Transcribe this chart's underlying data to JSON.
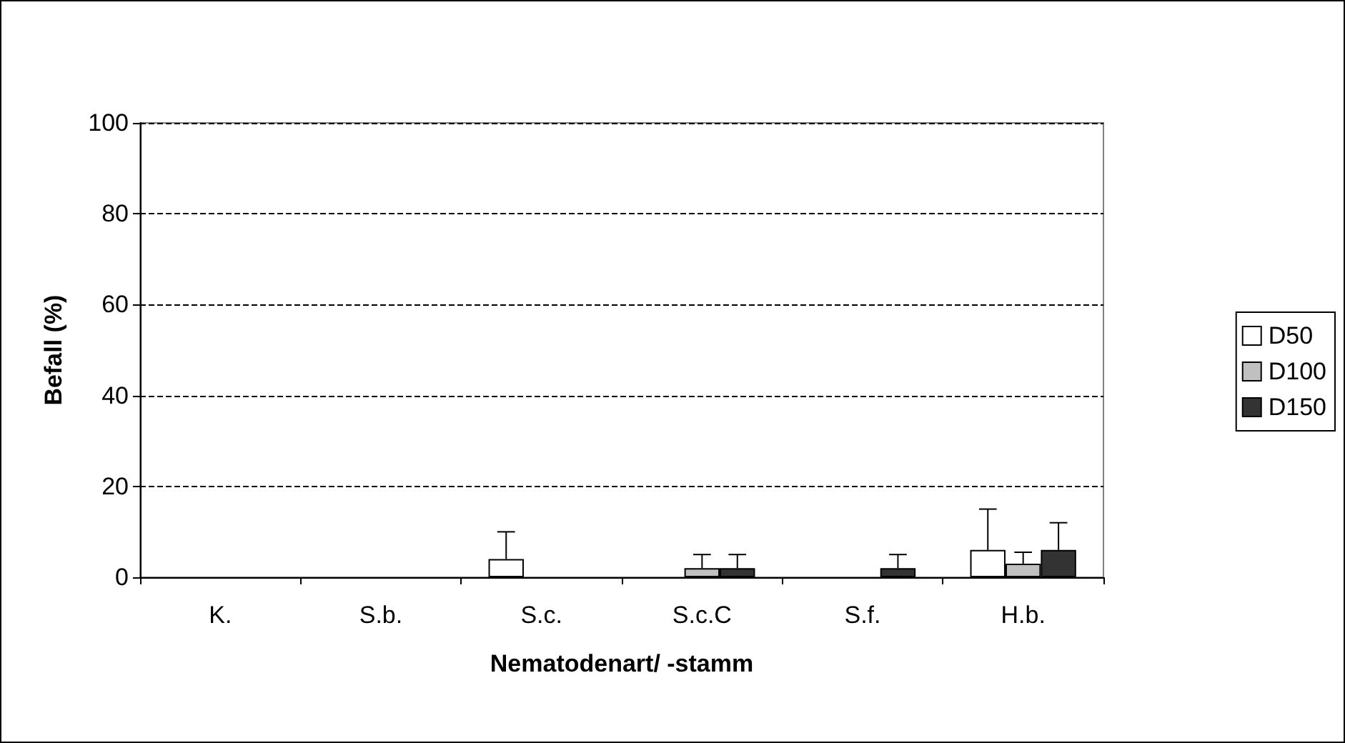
{
  "chart_data": {
    "type": "bar",
    "xlabel": "Nematodenart/ -stamm",
    "ylabel": "Befall (%)",
    "categories": [
      "K.",
      "S.b.",
      "S.c.",
      "S.c.C",
      "S.f.",
      "H.b."
    ],
    "series": [
      {
        "name": "D50",
        "color": "#ffffff",
        "values": [
          0,
          0,
          4,
          0,
          0,
          6
        ],
        "errors": [
          null,
          null,
          [
            4,
            10
          ],
          null,
          null,
          [
            6,
            15
          ]
        ]
      },
      {
        "name": "D100",
        "color": "#c0c0c0",
        "values": [
          0,
          0,
          0,
          2,
          0,
          3
        ],
        "errors": [
          null,
          null,
          null,
          [
            2,
            5
          ],
          null,
          [
            3,
            5.5
          ]
        ]
      },
      {
        "name": "D150",
        "color": "#333333",
        "values": [
          0,
          0,
          0,
          2,
          2,
          6
        ],
        "errors": [
          null,
          null,
          null,
          [
            2,
            5
          ],
          [
            2,
            5
          ],
          [
            6,
            12
          ]
        ]
      }
    ],
    "ylim": [
      0,
      100
    ],
    "yticks": [
      0,
      20,
      40,
      60,
      80,
      100
    ],
    "grid": "y",
    "legend": "right"
  }
}
